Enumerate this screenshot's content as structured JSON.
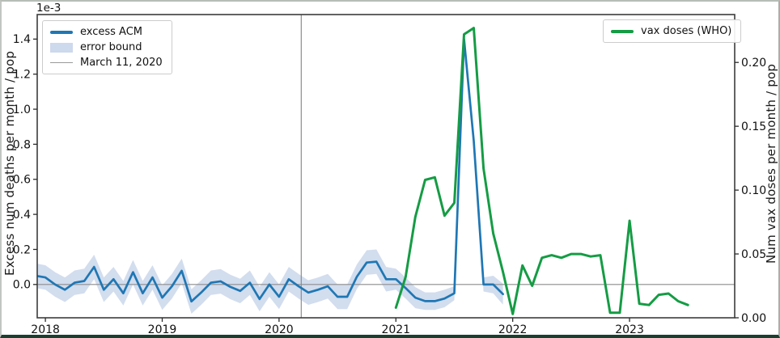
{
  "figure": {
    "background": "#ffffff",
    "border_bottom_color": "#17402e"
  },
  "chart_data": {
    "type": "line",
    "title": "",
    "offset_text": "1e-3",
    "ylabel_left": "Excess num deaths per month / pop",
    "ylabel_right": "Num vax doses per month / pop",
    "xlabel": "",
    "grid": false,
    "xlim": [
      2017.93,
      2023.9
    ],
    "left_ylim": [
      -0.19,
      1.54
    ],
    "right_ylim": [
      0.0,
      0.2375
    ],
    "x_tick_values": [
      2018,
      2019,
      2020,
      2021,
      2022,
      2023
    ],
    "x_tick_labels": [
      "2018",
      "2019",
      "2020",
      "2021",
      "2022",
      "2023"
    ],
    "left_tick_values": [
      0.0,
      0.2,
      0.4,
      0.6,
      0.8,
      1.0,
      1.2,
      1.4
    ],
    "left_tick_labels": [
      "0.0",
      "0.2",
      "0.4",
      "0.6",
      "0.8",
      "1.0",
      "1.2",
      "1.4"
    ],
    "right_tick_values": [
      0.0,
      0.05,
      0.1,
      0.15,
      0.2
    ],
    "right_tick_labels": [
      "0.00",
      "0.05",
      "0.10",
      "0.15",
      "0.20"
    ],
    "vline": {
      "x": 2020.19,
      "label": "March 11, 2020",
      "color": "#8c8c8c"
    },
    "hline": {
      "y": 0.0,
      "color": "#8c8c8c"
    },
    "error_band_color": "#cdd9ec",
    "series": [
      {
        "name": "excess ACM",
        "axis": "left",
        "color": "#1f77b4",
        "units": "1e-3 deaths per month / pop",
        "t_start": 2017.9167,
        "dt": 0.0833333,
        "values": [
          0.05,
          0.04,
          0.0,
          -0.03,
          0.01,
          0.02,
          0.1,
          -0.03,
          0.03,
          -0.05,
          0.07,
          -0.05,
          0.04,
          -0.075,
          -0.01,
          0.078,
          -0.097,
          -0.046,
          0.01,
          0.018,
          -0.014,
          -0.037,
          0.01,
          -0.083,
          0.0,
          -0.07,
          0.03,
          -0.01,
          -0.046,
          -0.03,
          -0.01,
          -0.07,
          -0.07,
          0.045,
          0.125,
          0.13,
          0.03,
          0.03,
          -0.02,
          -0.075,
          -0.095,
          -0.095,
          -0.08,
          -0.05,
          1.4,
          0.82,
          0.0,
          0.0,
          -0.055
        ],
        "error": [
          0.07,
          0.07,
          0.07,
          0.07,
          0.07,
          0.07,
          0.07,
          0.07,
          0.07,
          0.07,
          0.07,
          0.07,
          0.07,
          0.07,
          0.07,
          0.07,
          0.07,
          0.07,
          0.07,
          0.07,
          0.07,
          0.07,
          0.07,
          0.07,
          0.07,
          0.07,
          0.07,
          0.07,
          0.07,
          0.07,
          0.07,
          0.07,
          0.07,
          0.07,
          0.07,
          0.07,
          0.07,
          0.06,
          0.06,
          0.06,
          0.05,
          0.05,
          0.05,
          0.04,
          0.05,
          0.04,
          0.04,
          0.05,
          0.06
        ]
      },
      {
        "name": "vax doses (WHO)",
        "axis": "right",
        "color": "#159c44",
        "units": "doses per month / pop",
        "t_start": 2021.0,
        "dt": 0.0833333,
        "values": [
          0.008,
          0.032,
          0.079,
          0.108,
          0.11,
          0.08,
          0.09,
          0.222,
          0.227,
          0.117,
          0.066,
          0.036,
          0.003,
          0.041,
          0.025,
          0.047,
          0.049,
          0.047,
          0.05,
          0.05,
          0.048,
          0.049,
          0.004,
          0.004,
          0.076,
          0.011,
          0.01,
          0.018,
          0.019,
          0.013,
          0.01
        ]
      }
    ],
    "legend_left": [
      {
        "label": "excess ACM",
        "swatch": "line",
        "color": "#1f77b4"
      },
      {
        "label": "error bound",
        "swatch": "patch",
        "color": "#cdd9ec"
      },
      {
        "label": "March 11, 2020",
        "swatch": "thin-line",
        "color": "#9a9a9a"
      }
    ],
    "legend_right": [
      {
        "label": "vax doses (WHO)",
        "swatch": "line",
        "color": "#159c44"
      }
    ]
  }
}
